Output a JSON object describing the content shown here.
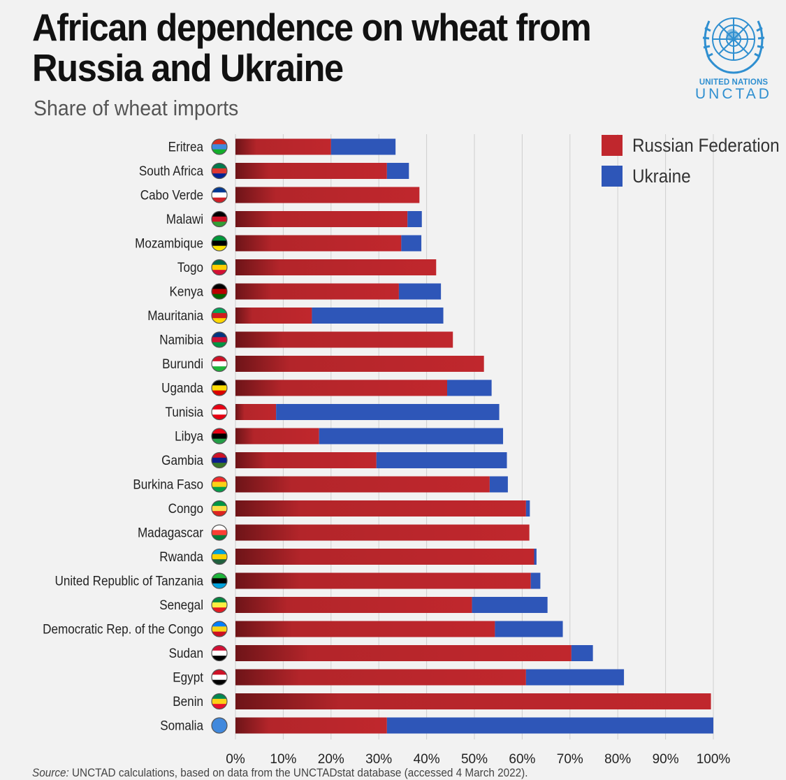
{
  "header": {
    "title": "African dependence on wheat from Russia and Ukraine",
    "subtitle": "Share of wheat imports"
  },
  "logo": {
    "org_line": "UNITED NATIONS",
    "name": "UNCTAD",
    "color": "#2f8fd0"
  },
  "footer": {
    "source_label": "Source:",
    "source_text": "UNCTAD calculations, based on data from the UNCTADstat database (accessed 4 March 2022)."
  },
  "chart_data": {
    "type": "bar",
    "orientation": "horizontal",
    "stacked": true,
    "title": "African dependence on wheat from Russia and Ukraine",
    "subtitle": "Share of wheat imports",
    "categories": [
      "Eritrea",
      "South Africa",
      "Cabo Verde",
      "Malawi",
      "Mozambique",
      "Togo",
      "Kenya",
      "Mauritania",
      "Namibia",
      "Burundi",
      "Uganda",
      "Tunisia",
      "Libya",
      "Gambia",
      "Burkina Faso",
      "Congo",
      "Madagascar",
      "Rwanda",
      "United Republic of Tanzania",
      "Senegal",
      "Democratic Rep. of the Congo",
      "Sudan",
      "Egypt",
      "Benin",
      "Somalia"
    ],
    "series": [
      {
        "name": "Russian Federation",
        "color": "#c0272d",
        "values": [
          20,
          31.7,
          38.5,
          36,
          34.7,
          42,
          34.2,
          16,
          45.5,
          52,
          44.3,
          8.5,
          17.5,
          29.5,
          53.2,
          60.8,
          61.5,
          62.5,
          61.8,
          49.5,
          54.3,
          70.3,
          60.8,
          99.5,
          31.7
        ]
      },
      {
        "name": "Ukraine",
        "color": "#2e56b8",
        "values": [
          13.5,
          4.6,
          0,
          3,
          4.2,
          0,
          8.8,
          27.5,
          0,
          0,
          9.3,
          46.7,
          38.5,
          27.3,
          3.8,
          0.8,
          0,
          0.5,
          2,
          15.8,
          14.2,
          4.5,
          20.5,
          0,
          68.3
        ]
      }
    ],
    "x_ticks": [
      "0%",
      "10%",
      "20%",
      "30%",
      "40%",
      "50%",
      "60%",
      "70%",
      "80%",
      "90%",
      "100%"
    ],
    "xlim": [
      0,
      100
    ],
    "unit": "%",
    "grid": true,
    "legend": "top-right"
  }
}
